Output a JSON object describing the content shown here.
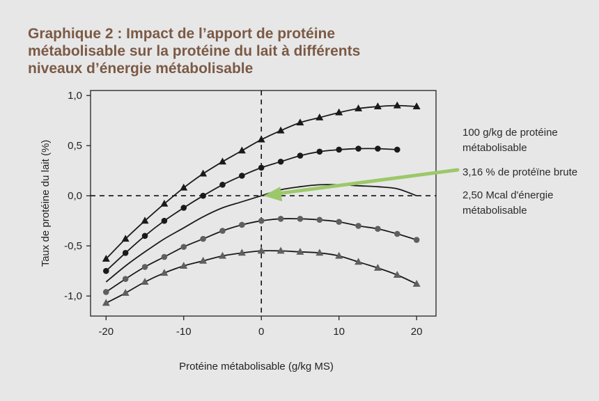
{
  "title": "Graphique 2 : Impact de l’apport de protéine métabolisable sur la protéine du lait à différents niveaux d’énergie métabolisable",
  "annotations": [
    "100 g/kg de protéine métabolisable",
    "3,16 % de protéïne brute",
    "2,50 Mcal d'énergie métabolisable"
  ],
  "colors": {
    "black": "#1a1a1a",
    "gray": "#5f5f5f",
    "arrow": "#9dc86a",
    "background": "#e7e7e8"
  },
  "chart_data": {
    "type": "line",
    "xlabel": "Protéine métabolisable (g/kg MS)",
    "ylabel": "Taux de protéine du lait (%)",
    "xlim": [
      -22,
      22.5
    ],
    "ylim": [
      -1.2,
      1.05
    ],
    "xticks": [
      -20,
      -10,
      0,
      10,
      20
    ],
    "xtick_labels": [
      "-20",
      "-10",
      "0",
      "10",
      "20"
    ],
    "yticks": [
      1.0,
      0.5,
      0.0,
      -0.5,
      -1.0
    ],
    "ytick_labels": [
      "1,0",
      "0,5",
      "0,0",
      "-0,5",
      "-1,0"
    ],
    "reference_lines": {
      "x": 0,
      "y": 0,
      "style": "dashed"
    },
    "grid": false,
    "series": [
      {
        "marker": "triangle",
        "color": "#1a1a1a",
        "x": [
          -20,
          -17.5,
          -15,
          -12.5,
          -10,
          -7.5,
          -5,
          -2.5,
          0,
          2.5,
          5,
          7.5,
          10,
          12.5,
          15,
          17.5,
          20
        ],
        "y": [
          -0.63,
          -0.43,
          -0.25,
          -0.08,
          0.08,
          0.22,
          0.34,
          0.45,
          0.56,
          0.65,
          0.73,
          0.78,
          0.83,
          0.87,
          0.89,
          0.9,
          0.89
        ]
      },
      {
        "marker": "circle",
        "color": "#1a1a1a",
        "x": [
          -20,
          -17.5,
          -15,
          -12.5,
          -10,
          -7.5,
          -5,
          -2.5,
          0,
          2.5,
          5,
          7.5,
          10,
          12.5,
          15,
          17.5
        ],
        "y": [
          -0.75,
          -0.57,
          -0.4,
          -0.25,
          -0.12,
          0.0,
          0.11,
          0.2,
          0.28,
          0.34,
          0.4,
          0.44,
          0.46,
          0.47,
          0.47,
          0.46
        ]
      },
      {
        "marker": "none",
        "color": "#1a1a1a",
        "x": [
          -20,
          -17.5,
          -15,
          -12.5,
          -10,
          -7.5,
          -5,
          -2.5,
          0,
          2.5,
          5,
          7.5,
          10,
          12.5,
          15,
          17.5,
          20
        ],
        "y": [
          -0.86,
          -0.7,
          -0.56,
          -0.43,
          -0.32,
          -0.21,
          -0.12,
          -0.06,
          0.0,
          0.06,
          0.09,
          0.11,
          0.11,
          0.1,
          0.09,
          0.07,
          0.0
        ]
      },
      {
        "marker": "circle",
        "color": "#5f5f5f",
        "x": [
          -20,
          -17.5,
          -15,
          -12.5,
          -10,
          -7.5,
          -5,
          -2.5,
          0,
          2.5,
          5,
          7.5,
          10,
          12.5,
          15,
          17.5,
          20
        ],
        "y": [
          -0.96,
          -0.83,
          -0.71,
          -0.61,
          -0.51,
          -0.43,
          -0.35,
          -0.29,
          -0.25,
          -0.23,
          -0.23,
          -0.24,
          -0.26,
          -0.3,
          -0.33,
          -0.38,
          -0.44
        ]
      },
      {
        "marker": "triangle",
        "color": "#5f5f5f",
        "x": [
          -20,
          -17.5,
          -15,
          -12.5,
          -10,
          -7.5,
          -5,
          -2.5,
          0,
          2.5,
          5,
          7.5,
          10,
          12.5,
          15,
          17.5,
          20
        ],
        "y": [
          -1.07,
          -0.97,
          -0.86,
          -0.77,
          -0.7,
          -0.65,
          -0.6,
          -0.57,
          -0.55,
          -0.55,
          -0.56,
          -0.57,
          -0.6,
          -0.66,
          -0.72,
          -0.79,
          -0.88
        ]
      }
    ],
    "annotation_arrow": {
      "target_x": 0,
      "target_y": 0
    }
  }
}
